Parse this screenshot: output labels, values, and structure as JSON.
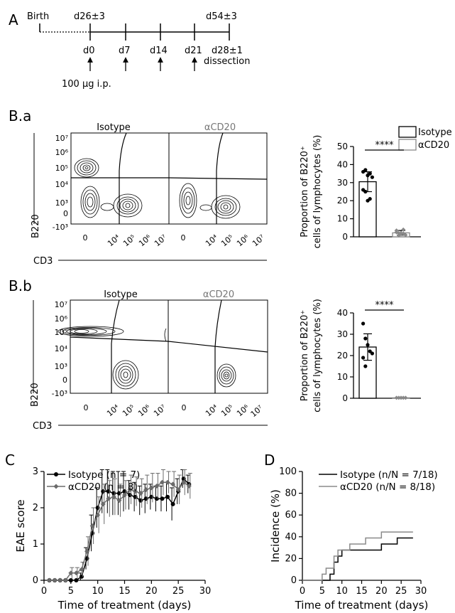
{
  "panels": {
    "A": {
      "letter": "A",
      "top_labels": [
        "Birth",
        "d26±3",
        "d54±3"
      ],
      "days": [
        "d0",
        "d7",
        "d14",
        "d21",
        "d28±1"
      ],
      "dissection": "dissection",
      "dose": "100 µg i.p."
    },
    "Ba": {
      "letter": "B.a",
      "isotype_title": "Isotype",
      "cd20_title": "αCD20"
    },
    "Bb": {
      "letter": "B.b",
      "isotype_title": "Isotype",
      "cd20_title": "αCD20"
    },
    "C": {
      "letter": "C"
    },
    "D": {
      "letter": "D"
    }
  },
  "flow": {
    "y_ticks": [
      "10⁷",
      "10⁶",
      "10⁵",
      "10⁴",
      "10³",
      "0",
      "-10³"
    ],
    "x_ticks": [
      "0",
      "10⁴",
      "10⁵",
      "10⁶",
      "10⁷"
    ],
    "ylabel": "B220",
    "xlabel": "CD3"
  },
  "legend_B": {
    "isotype": "Isotype",
    "cd20": "αCD20"
  },
  "chart_data": [
    {
      "type": "bar",
      "panel": "B.a",
      "ylabel": "Proportion of B220⁺ cells of lymphocytes (%)",
      "ylim": [
        0,
        50
      ],
      "yticks": [
        "0",
        "10",
        "20",
        "30",
        "40",
        "50"
      ],
      "categories": [
        "Isotype",
        "αCD20"
      ],
      "values": [
        30.5,
        2.2
      ],
      "sd": [
        5.5,
        1.3
      ],
      "points": [
        [
          36,
          37,
          34,
          35,
          33,
          26,
          25,
          20,
          21
        ],
        [
          3.5,
          2,
          1.5,
          4,
          1,
          2.5,
          0.8,
          2,
          1.8
        ]
      ],
      "significance": "****"
    },
    {
      "type": "bar",
      "panel": "B.b",
      "ylabel": "Proportion of B220⁺ cells of lymphocytes (%)",
      "ylim": [
        0,
        40
      ],
      "yticks": [
        "0",
        "10",
        "20",
        "30",
        "40"
      ],
      "categories": [
        "Isotype",
        "αCD20"
      ],
      "values": [
        24,
        0.2
      ],
      "sd": [
        6.2,
        0.1
      ],
      "points": [
        [
          35,
          28,
          25,
          22,
          21,
          19,
          15
        ],
        [
          0.2,
          0.2,
          0.2,
          0.2,
          0.2
        ]
      ],
      "significance": "****"
    },
    {
      "type": "line",
      "panel": "C",
      "xlabel": "Time of treatment (days)",
      "ylabel": "EAE score",
      "xlim": [
        0,
        30
      ],
      "ylim": [
        0,
        3
      ],
      "xticks": [
        "0",
        "5",
        "10",
        "15",
        "20",
        "25",
        "30"
      ],
      "yticks": [
        "0",
        "1",
        "2",
        "3"
      ],
      "series": [
        {
          "name": "Isotype (n = 7)",
          "color": "#000000",
          "x": [
            1,
            2,
            3,
            4,
            5,
            6,
            7,
            8,
            9,
            10,
            11,
            12,
            13,
            14,
            15,
            16,
            17,
            18,
            19,
            20,
            21,
            22,
            23,
            24,
            25,
            26,
            27
          ],
          "y": [
            0,
            0,
            0,
            0,
            0,
            0,
            0.1,
            0.6,
            1.3,
            2.0,
            2.45,
            2.45,
            2.4,
            2.4,
            2.45,
            2.35,
            2.3,
            2.2,
            2.25,
            2.3,
            2.25,
            2.25,
            2.3,
            2.1,
            2.45,
            2.8,
            2.65
          ],
          "err": [
            0,
            0,
            0,
            0,
            0,
            0,
            0.1,
            0.3,
            0.5,
            0.55,
            0.6,
            0.6,
            0.6,
            0.6,
            0.55,
            0.4,
            0.4,
            0.4,
            0.4,
            0.35,
            0.35,
            0.35,
            0.4,
            0.45,
            0.35,
            0.25,
            0.25
          ]
        },
        {
          "name": "αCD20 (n = 8)",
          "color": "#6b6b6b",
          "x": [
            1,
            2,
            3,
            4,
            5,
            6,
            7,
            8,
            9,
            10,
            11,
            12,
            13,
            14,
            15,
            16,
            17,
            18,
            19,
            20,
            21,
            22,
            23,
            24,
            25,
            26,
            27
          ],
          "y": [
            0,
            0,
            0,
            0,
            0.2,
            0.2,
            0.3,
            0.8,
            1.5,
            1.8,
            2.1,
            2.25,
            2.3,
            2.2,
            2.35,
            2.5,
            2.45,
            2.4,
            2.5,
            2.55,
            2.6,
            2.7,
            2.7,
            2.65,
            2.5,
            2.7,
            2.6
          ],
          "err": [
            0,
            0,
            0,
            0,
            0.15,
            0.15,
            0.2,
            0.4,
            0.5,
            0.5,
            0.55,
            0.5,
            0.5,
            0.45,
            0.4,
            0.4,
            0.4,
            0.4,
            0.4,
            0.4,
            0.35,
            0.35,
            0.3,
            0.35,
            0.4,
            0.35,
            0.35
          ]
        }
      ]
    },
    {
      "type": "line",
      "panel": "D",
      "xlabel": "Time of treatment (days)",
      "ylabel": "Incidence (%)",
      "xlim": [
        0,
        30
      ],
      "ylim": [
        0,
        100
      ],
      "xticks": [
        "0",
        "5",
        "10",
        "15",
        "20",
        "25",
        "30"
      ],
      "yticks": [
        "0",
        "20",
        "40",
        "60",
        "80",
        "100"
      ],
      "series": [
        {
          "name": "Isotype (n/N = 7/18)",
          "color": "#000000",
          "x": [
            0,
            7,
            8,
            9,
            10,
            12,
            20,
            24,
            28
          ],
          "y": [
            0,
            5.6,
            16.7,
            22.2,
            27.8,
            27.8,
            33.3,
            38.9,
            38.9
          ]
        },
        {
          "name": "αCD20 (n/N = 8/18)",
          "color": "#8a8a8a",
          "x": [
            0,
            5,
            6,
            8,
            9,
            12,
            16,
            20,
            28
          ],
          "y": [
            0,
            5.6,
            11.1,
            22.2,
            27.8,
            33.3,
            38.9,
            44.4,
            44.4
          ]
        }
      ]
    }
  ]
}
